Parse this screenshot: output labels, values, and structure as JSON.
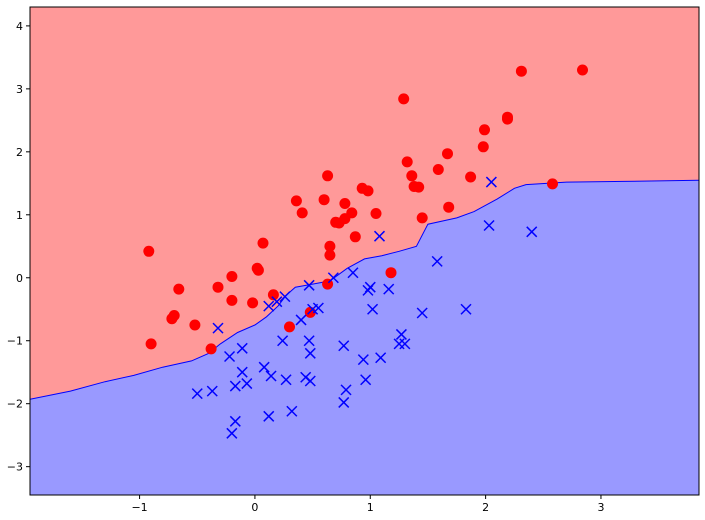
{
  "chart_data": {
    "type": "scatter",
    "title": "",
    "xlabel": "",
    "ylabel": "",
    "xlim": [
      -1.95,
      3.85
    ],
    "ylim": [
      -3.45,
      4.3
    ],
    "x_ticks": [
      -1,
      0,
      1,
      2,
      3
    ],
    "y_ticks": [
      -3,
      -2,
      -1,
      0,
      1,
      2,
      3,
      4
    ],
    "x_tick_labels": [
      "−1",
      "0",
      "1",
      "2",
      "3"
    ],
    "y_tick_labels": [
      "−3",
      "−2",
      "−1",
      "0",
      "1",
      "2",
      "3",
      "4"
    ],
    "grid": false,
    "legend": "none",
    "region_colors": {
      "upper": "#ff9999",
      "lower": "#9999ff",
      "boundary": "#0000ff"
    },
    "decision_boundary": [
      [
        -1.95,
        -1.93
      ],
      [
        -1.6,
        -1.8
      ],
      [
        -1.3,
        -1.65
      ],
      [
        -1.05,
        -1.55
      ],
      [
        -0.8,
        -1.42
      ],
      [
        -0.55,
        -1.32
      ],
      [
        -0.4,
        -1.2
      ],
      [
        -0.3,
        -1.05
      ],
      [
        -0.15,
        -0.87
      ],
      [
        0.0,
        -0.75
      ],
      [
        0.1,
        -0.62
      ],
      [
        0.2,
        -0.45
      ],
      [
        0.27,
        -0.28
      ],
      [
        0.35,
        -0.15
      ],
      [
        0.5,
        -0.1
      ],
      [
        0.65,
        -0.05
      ],
      [
        0.8,
        0.15
      ],
      [
        0.95,
        0.3
      ],
      [
        1.1,
        0.35
      ],
      [
        1.25,
        0.42
      ],
      [
        1.4,
        0.5
      ],
      [
        1.5,
        0.85
      ],
      [
        1.75,
        0.95
      ],
      [
        1.9,
        1.05
      ],
      [
        2.1,
        1.25
      ],
      [
        2.25,
        1.42
      ],
      [
        2.35,
        1.48
      ],
      [
        2.7,
        1.52
      ],
      [
        3.2,
        1.53
      ],
      [
        3.85,
        1.55
      ]
    ],
    "series": [
      {
        "marker": "circle",
        "color": "#ff0000",
        "points": [
          [
            -0.92,
            0.42
          ],
          [
            -0.9,
            -1.05
          ],
          [
            -0.72,
            -0.65
          ],
          [
            -0.7,
            -0.6
          ],
          [
            -0.66,
            -0.18
          ],
          [
            -0.52,
            -0.75
          ],
          [
            -0.38,
            -1.13
          ],
          [
            -0.32,
            -0.15
          ],
          [
            -0.2,
            0.02
          ],
          [
            -0.2,
            -0.36
          ],
          [
            -0.02,
            -0.4
          ],
          [
            0.02,
            0.15
          ],
          [
            0.03,
            0.12
          ],
          [
            0.07,
            0.55
          ],
          [
            0.16,
            -0.27
          ],
          [
            0.3,
            -0.78
          ],
          [
            0.36,
            1.22
          ],
          [
            0.41,
            1.03
          ],
          [
            0.48,
            -0.55
          ],
          [
            0.6,
            1.24
          ],
          [
            0.63,
            -0.1
          ],
          [
            0.63,
            1.62
          ],
          [
            0.65,
            0.5
          ],
          [
            0.65,
            0.36
          ],
          [
            0.7,
            0.88
          ],
          [
            0.73,
            0.87
          ],
          [
            0.78,
            0.94
          ],
          [
            0.78,
            1.18
          ],
          [
            0.84,
            1.03
          ],
          [
            0.87,
            0.65
          ],
          [
            0.93,
            1.42
          ],
          [
            0.98,
            1.38
          ],
          [
            1.05,
            1.02
          ],
          [
            1.18,
            0.08
          ],
          [
            1.29,
            2.84
          ],
          [
            1.32,
            1.84
          ],
          [
            1.36,
            1.62
          ],
          [
            1.38,
            1.45
          ],
          [
            1.42,
            1.44
          ],
          [
            1.45,
            0.95
          ],
          [
            1.59,
            1.72
          ],
          [
            1.67,
            1.97
          ],
          [
            1.68,
            1.12
          ],
          [
            1.87,
            1.6
          ],
          [
            1.98,
            2.08
          ],
          [
            1.99,
            2.35
          ],
          [
            2.19,
            2.52
          ],
          [
            2.19,
            2.55
          ],
          [
            2.31,
            3.28
          ],
          [
            2.58,
            1.49
          ],
          [
            2.84,
            3.3
          ]
        ]
      },
      {
        "marker": "x",
        "color": "#0000ff",
        "points": [
          [
            -0.5,
            -1.84
          ],
          [
            -0.37,
            -1.8
          ],
          [
            -0.32,
            -0.8
          ],
          [
            -0.22,
            -1.25
          ],
          [
            -0.2,
            -2.47
          ],
          [
            -0.17,
            -1.72
          ],
          [
            -0.17,
            -2.28
          ],
          [
            -0.11,
            -1.5
          ],
          [
            -0.11,
            -1.12
          ],
          [
            -0.07,
            -1.68
          ],
          [
            0.08,
            -1.42
          ],
          [
            0.12,
            -2.2
          ],
          [
            0.12,
            -0.45
          ],
          [
            0.14,
            -1.56
          ],
          [
            0.19,
            -0.38
          ],
          [
            0.24,
            -1.0
          ],
          [
            0.26,
            -0.3
          ],
          [
            0.27,
            -1.62
          ],
          [
            0.32,
            -2.12
          ],
          [
            0.4,
            -0.67
          ],
          [
            0.44,
            -1.58
          ],
          [
            0.47,
            -0.12
          ],
          [
            0.47,
            -1.0
          ],
          [
            0.48,
            -1.2
          ],
          [
            0.48,
            -1.64
          ],
          [
            0.5,
            -0.5
          ],
          [
            0.55,
            -0.48
          ],
          [
            0.68,
            0.0
          ],
          [
            0.77,
            -1.08
          ],
          [
            0.77,
            -1.98
          ],
          [
            0.79,
            -1.78
          ],
          [
            0.85,
            0.08
          ],
          [
            0.94,
            -1.3
          ],
          [
            0.96,
            -1.62
          ],
          [
            0.98,
            -0.2
          ],
          [
            1.0,
            -0.15
          ],
          [
            1.02,
            -0.5
          ],
          [
            1.08,
            0.66
          ],
          [
            1.09,
            -1.27
          ],
          [
            1.16,
            -0.18
          ],
          [
            1.25,
            -1.05
          ],
          [
            1.27,
            -0.9
          ],
          [
            1.3,
            -1.05
          ],
          [
            1.45,
            -0.56
          ],
          [
            1.58,
            0.26
          ],
          [
            1.83,
            -0.5
          ],
          [
            2.03,
            0.83
          ],
          [
            2.05,
            1.52
          ],
          [
            2.4,
            0.73
          ]
        ]
      }
    ]
  }
}
